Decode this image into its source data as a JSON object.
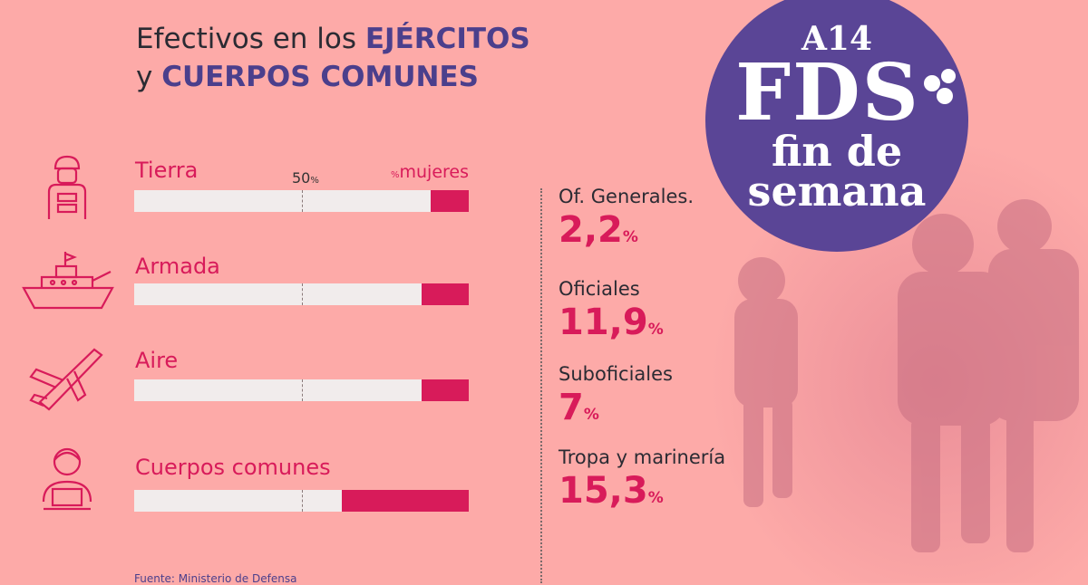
{
  "title": {
    "line1_plain": "Efectivos en los ",
    "line1_highlight": "EJÉRCITOS",
    "line2_plain": "y ",
    "line2_highlight": "CUERPOS COMUNES"
  },
  "legend": {
    "fifty": "50",
    "fifty_unit": "%",
    "women_unit": "%",
    "women": "mujeres"
  },
  "chart_data": {
    "type": "bar",
    "categories": [
      "Tierra",
      "Armada",
      "Aire",
      "Cuerpos comunes"
    ],
    "series": [
      {
        "name": "mujeres",
        "values": [
          11.4,
          14.0,
          14.0,
          38.0
        ]
      }
    ],
    "unit": "%",
    "xlim": [
      0,
      100
    ],
    "reference_line": 50,
    "colors": {
      "fill": "#d81b5a",
      "track": "#f1ecec"
    }
  },
  "icons": [
    "soldier-icon",
    "warship-icon",
    "fighter-jet-icon",
    "office-worker-icon"
  ],
  "stats": [
    {
      "label": "Of. Generales.",
      "value": "2,2",
      "unit": "%"
    },
    {
      "label": "Oficiales",
      "value": "11,9",
      "unit": "%"
    },
    {
      "label": "Suboficiales",
      "value": "7",
      "unit": "%"
    },
    {
      "label": "Tropa y marinería",
      "value": "15,3",
      "unit": "%"
    }
  ],
  "source": "Fuente: Ministerio de Defensa",
  "logo": {
    "section": "A14",
    "brand": "FDS",
    "tagline_1": "fin de",
    "tagline_2": "semana"
  },
  "colors": {
    "background": "#fdaaa8",
    "accent": "#d81b5a",
    "brand": "#5a4596",
    "title_highlight": "#4b3f8c"
  }
}
